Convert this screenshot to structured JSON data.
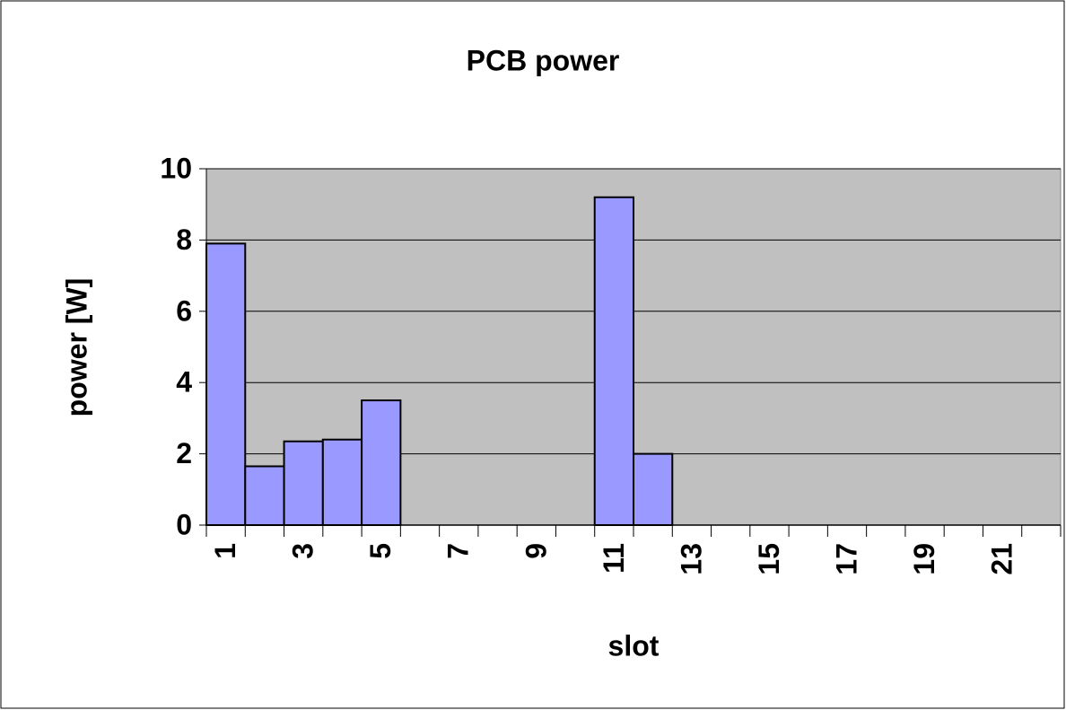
{
  "chart_data": {
    "type": "bar",
    "title": "PCB power",
    "x_label": "slot",
    "y_label": "power [W]",
    "categories": [
      "1",
      null,
      "3",
      null,
      "5",
      null,
      "7",
      null,
      "9",
      null,
      "11",
      null,
      "13",
      null,
      "15",
      null,
      "17",
      null,
      "19",
      null,
      "21",
      null
    ],
    "values": [
      7.9,
      1.65,
      2.35,
      2.4,
      3.5,
      0,
      0,
      0,
      0,
      0,
      9.2,
      2.0,
      0,
      0,
      0,
      0,
      0,
      0,
      0,
      0,
      0,
      0
    ],
    "color": "#9999ff",
    "ylim": [
      0,
      10
    ],
    "yticks": [
      0,
      2,
      4,
      6,
      8,
      10
    ],
    "grid": true
  }
}
